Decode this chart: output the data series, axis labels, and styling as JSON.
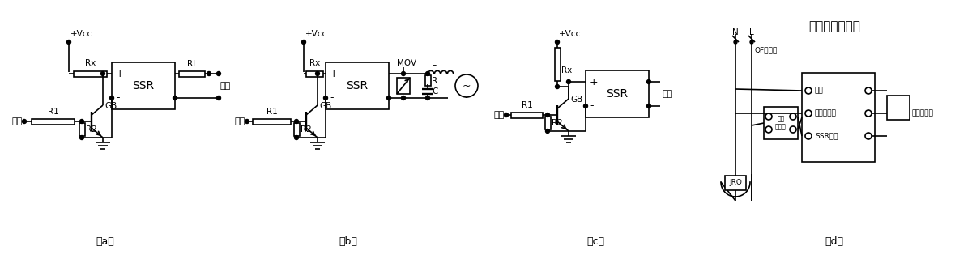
{
  "background": "#ffffff",
  "lc": "#000000",
  "lw": 1.2,
  "labels_a": {
    "vcc": "+Vcc",
    "rx": "Rx",
    "rl": "RL",
    "ssr": "SSR",
    "r1": "R1",
    "gb": "GB",
    "r2": "R2",
    "input": "输入",
    "output": "输出",
    "caption": "（a）"
  },
  "labels_b": {
    "vcc": "+Vcc",
    "rx": "Rx",
    "mov": "MOV",
    "l": "L",
    "ssr": "SSR",
    "r1": "R1",
    "gb": "GB",
    "r2": "R2",
    "r": "R",
    "c": "C",
    "input": "输入",
    "caption": "（b）"
  },
  "labels_c": {
    "vcc": "+Vcc",
    "rx": "Rx",
    "ssr": "SSR",
    "r1": "R1",
    "gb": "GB",
    "r2": "R2",
    "input": "输入",
    "output": "输出",
    "caption": "（c）"
  },
  "labels_d": {
    "title": "温度控制原理图",
    "n": "N",
    "l": "L",
    "gf": "QF断路器",
    "supply": "供电",
    "temp_ctrl": "温度控制器",
    "solid_relay": "固态\n继电器",
    "ssr_out": "SSR输出",
    "temp_sensor": "温度传感器",
    "jrq": "JRQ",
    "caption": "（d）"
  }
}
